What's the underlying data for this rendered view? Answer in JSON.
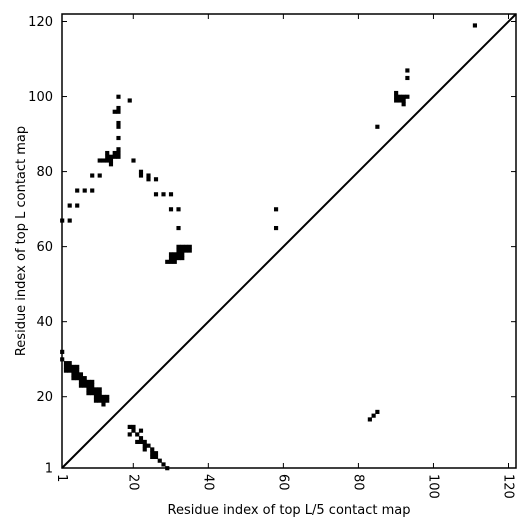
{
  "chart_data": {
    "type": "scatter",
    "xlabel": "Residue index of top L/5 contact map",
    "ylabel": "Residue index of top L contact map",
    "xlim": [
      1,
      122
    ],
    "ylim": [
      1,
      122
    ],
    "x_ticks": [
      {
        "value": 1,
        "label": "1"
      },
      {
        "value": 20,
        "label": "20"
      },
      {
        "value": 40,
        "label": "40"
      },
      {
        "value": 60,
        "label": "60"
      },
      {
        "value": 80,
        "label": "80"
      },
      {
        "value": 100,
        "label": "100"
      },
      {
        "value": 120,
        "label": "120"
      }
    ],
    "y_ticks": [
      {
        "value": 1,
        "label": "1"
      },
      {
        "value": 20,
        "label": "20"
      },
      {
        "value": 40,
        "label": "40"
      },
      {
        "value": 60,
        "label": "60"
      },
      {
        "value": 80,
        "label": "80"
      },
      {
        "value": 100,
        "label": "100"
      },
      {
        "value": 120,
        "label": "120"
      }
    ],
    "diagonal": [
      [
        1,
        1
      ],
      [
        122,
        122
      ]
    ],
    "series": [
      {
        "marker_color": "#000000",
        "points": [
          [
            1,
            32
          ],
          [
            1,
            30
          ],
          [
            2,
            29
          ],
          [
            3,
            29
          ],
          [
            2,
            28
          ],
          [
            3,
            28
          ],
          [
            4,
            28
          ],
          [
            5,
            28
          ],
          [
            2,
            27
          ],
          [
            3,
            27
          ],
          [
            4,
            27
          ],
          [
            5,
            27
          ],
          [
            4,
            26
          ],
          [
            5,
            26
          ],
          [
            6,
            26
          ],
          [
            4,
            25
          ],
          [
            5,
            25
          ],
          [
            6,
            25
          ],
          [
            7,
            25
          ],
          [
            6,
            24
          ],
          [
            7,
            24
          ],
          [
            8,
            24
          ],
          [
            9,
            24
          ],
          [
            6,
            23
          ],
          [
            7,
            23
          ],
          [
            8,
            23
          ],
          [
            9,
            23
          ],
          [
            8,
            22
          ],
          [
            9,
            22
          ],
          [
            10,
            22
          ],
          [
            11,
            22
          ],
          [
            8,
            21
          ],
          [
            9,
            21
          ],
          [
            10,
            21
          ],
          [
            11,
            21
          ],
          [
            10,
            20
          ],
          [
            11,
            20
          ],
          [
            12,
            20
          ],
          [
            13,
            20
          ],
          [
            10,
            19
          ],
          [
            11,
            19
          ],
          [
            12,
            19
          ],
          [
            13,
            19
          ],
          [
            12,
            18
          ],
          [
            19,
            12
          ],
          [
            20,
            12
          ],
          [
            20,
            11
          ],
          [
            22,
            11
          ],
          [
            19,
            10
          ],
          [
            21,
            10
          ],
          [
            22,
            9
          ],
          [
            21,
            8
          ],
          [
            22,
            8
          ],
          [
            23,
            8
          ],
          [
            23,
            7
          ],
          [
            24,
            7
          ],
          [
            23,
            6
          ],
          [
            25,
            6
          ],
          [
            25,
            5
          ],
          [
            26,
            5
          ],
          [
            25,
            4
          ],
          [
            26,
            4
          ],
          [
            27,
            3
          ],
          [
            28,
            2
          ],
          [
            29,
            1
          ],
          [
            1,
            67
          ],
          [
            3,
            67
          ],
          [
            3,
            71
          ],
          [
            5,
            71
          ],
          [
            5,
            75
          ],
          [
            7,
            75
          ],
          [
            9,
            75
          ],
          [
            9,
            79
          ],
          [
            11,
            79
          ],
          [
            11,
            83
          ],
          [
            12,
            83
          ],
          [
            13,
            83
          ],
          [
            14,
            83
          ],
          [
            13,
            84
          ],
          [
            14,
            84
          ],
          [
            15,
            84
          ],
          [
            16,
            84
          ],
          [
            13,
            85
          ],
          [
            15,
            85
          ],
          [
            16,
            85
          ],
          [
            16,
            86
          ],
          [
            14,
            82
          ],
          [
            15,
            96
          ],
          [
            16,
            96
          ],
          [
            16,
            97
          ],
          [
            16,
            100
          ],
          [
            16,
            93
          ],
          [
            16,
            92
          ],
          [
            16,
            89
          ],
          [
            19,
            99
          ],
          [
            20,
            83
          ],
          [
            22,
            80
          ],
          [
            22,
            79
          ],
          [
            24,
            79
          ],
          [
            24,
            78
          ],
          [
            26,
            78
          ],
          [
            26,
            74
          ],
          [
            28,
            74
          ],
          [
            30,
            74
          ],
          [
            30,
            70
          ],
          [
            32,
            70
          ],
          [
            32,
            65
          ],
          [
            29,
            56
          ],
          [
            30,
            56
          ],
          [
            31,
            56
          ],
          [
            30,
            57
          ],
          [
            31,
            57
          ],
          [
            32,
            57
          ],
          [
            33,
            57
          ],
          [
            30,
            58
          ],
          [
            31,
            58
          ],
          [
            32,
            58
          ],
          [
            33,
            58
          ],
          [
            32,
            59
          ],
          [
            33,
            59
          ],
          [
            34,
            59
          ],
          [
            35,
            59
          ],
          [
            32,
            60
          ],
          [
            33,
            60
          ],
          [
            34,
            60
          ],
          [
            35,
            60
          ],
          [
            58,
            70
          ],
          [
            58,
            65
          ],
          [
            85,
            92
          ],
          [
            93,
            107
          ],
          [
            93,
            105
          ],
          [
            90,
            101
          ],
          [
            90,
            100
          ],
          [
            91,
            100
          ],
          [
            92,
            100
          ],
          [
            93,
            100
          ],
          [
            90,
            99
          ],
          [
            91,
            99
          ],
          [
            92,
            99
          ],
          [
            92,
            98
          ],
          [
            111,
            119
          ],
          [
            83,
            14
          ],
          [
            84,
            15
          ],
          [
            85,
            16
          ]
        ]
      }
    ],
    "grid": false,
    "legend": "none"
  }
}
